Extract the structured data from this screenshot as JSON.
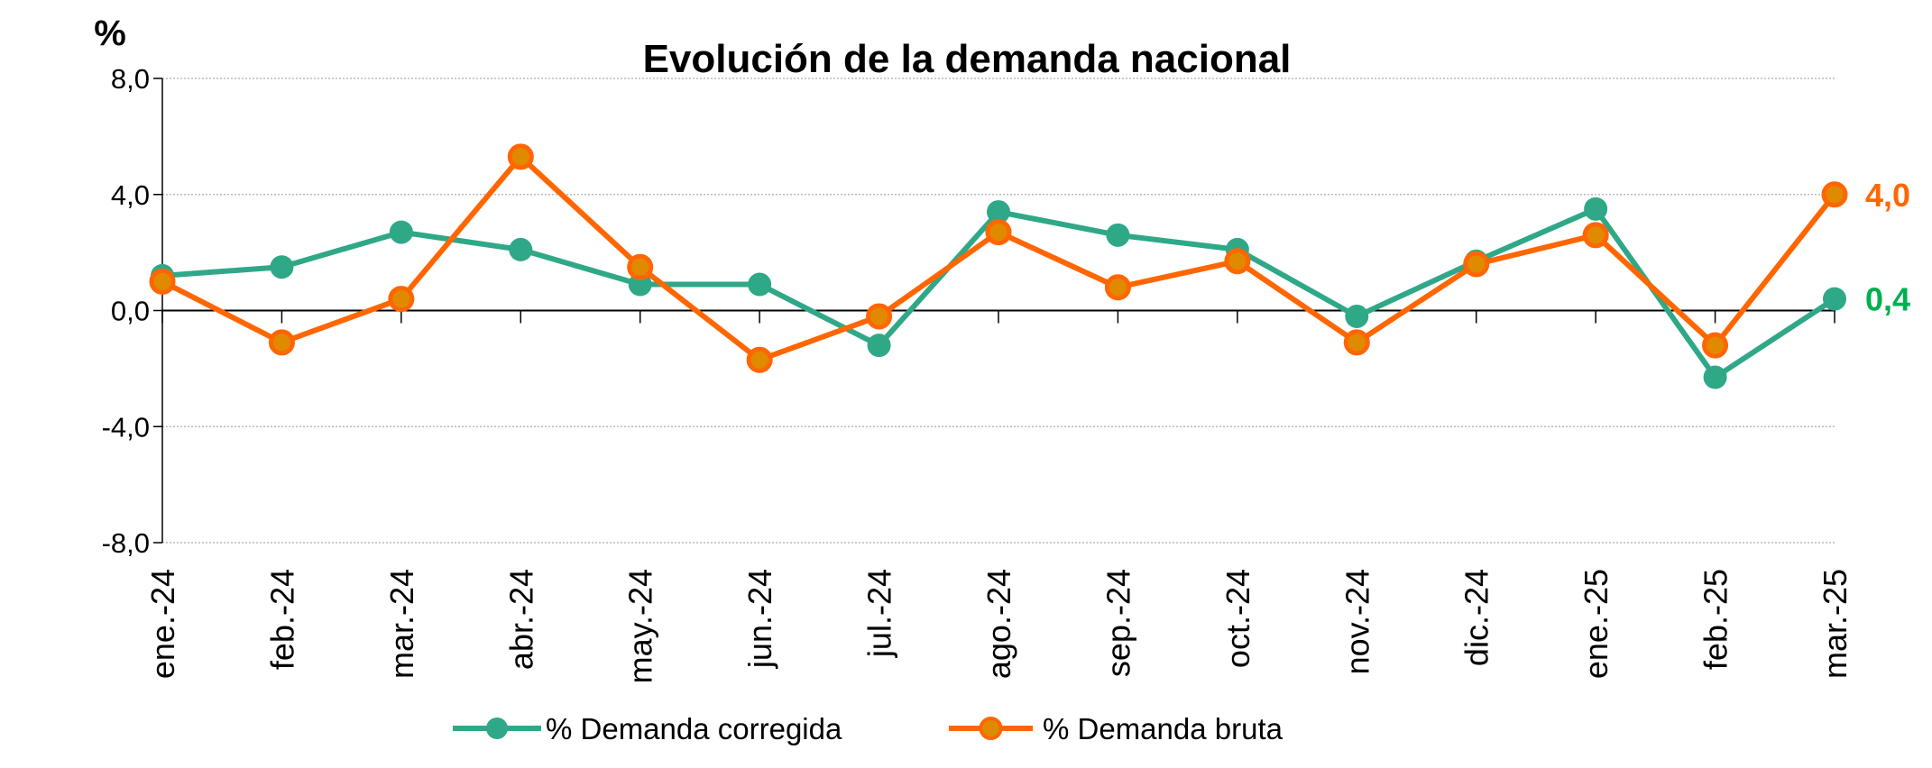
{
  "chart_data": {
    "type": "line",
    "title": "Evolución de la demanda nacional",
    "ylabel": "%",
    "xlabel": "",
    "ylim": [
      -8,
      8
    ],
    "yticks": [
      8,
      4,
      0,
      -4,
      -8
    ],
    "ytick_labels": [
      "8,0",
      "4,0",
      "0,0",
      "-4,0",
      "-8,0"
    ],
    "grid": true,
    "legend": "bottom",
    "categories": [
      "ene.-24",
      "feb.-24",
      "mar.-24",
      "abr.-24",
      "may.-24",
      "jun.-24",
      "jul.-24",
      "ago.-24",
      "sep.-24",
      "oct.-24",
      "nov.-24",
      "dic.-24",
      "ene.-25",
      "feb.-25",
      "mar.-25"
    ],
    "series": [
      {
        "name": "% Demanda corregida",
        "color": "#2fa888",
        "label_color": "#00b050",
        "values": [
          1.2,
          1.5,
          2.7,
          2.1,
          0.9,
          0.9,
          -1.2,
          3.4,
          2.6,
          2.1,
          -0.2,
          1.7,
          3.5,
          -2.3,
          0.4
        ],
        "end_label": "0,4"
      },
      {
        "name": "% Demanda bruta",
        "color": "#ff6600",
        "marker_fill": "#e08a00",
        "label_color": "#ff6600",
        "values": [
          1.0,
          -1.1,
          0.4,
          5.3,
          1.5,
          -1.7,
          -0.2,
          2.7,
          0.8,
          1.7,
          -1.1,
          1.6,
          2.6,
          -1.2,
          4.0
        ],
        "end_label": "4,0"
      }
    ]
  }
}
